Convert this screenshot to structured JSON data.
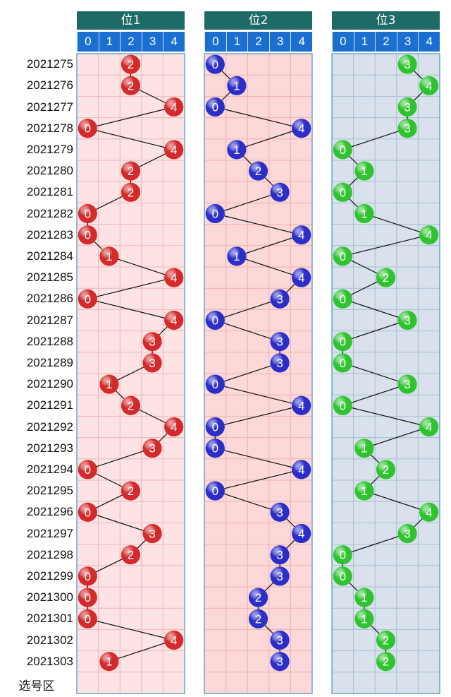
{
  "chart_data": {
    "type": "scatter",
    "periods": [
      "2021275",
      "2021276",
      "2021277",
      "2021278",
      "2021279",
      "2021280",
      "2021281",
      "2021282",
      "2021283",
      "2021284",
      "2021285",
      "2021286",
      "2021287",
      "2021288",
      "2021289",
      "2021290",
      "2021291",
      "2021292",
      "2021293",
      "2021294",
      "2021295",
      "2021296",
      "2021297",
      "2021298",
      "2021299",
      "2021300",
      "2021301",
      "2021302",
      "2021303"
    ],
    "columns": [
      "0",
      "1",
      "2",
      "3",
      "4"
    ],
    "select_area_label": "选号区",
    "panels": [
      {
        "title": "位1",
        "color": "#d42a2a",
        "values": [
          2,
          2,
          4,
          0,
          4,
          2,
          2,
          0,
          0,
          1,
          4,
          0,
          4,
          3,
          3,
          1,
          2,
          4,
          3,
          0,
          2,
          0,
          3,
          2,
          0,
          0,
          0,
          4,
          1
        ]
      },
      {
        "title": "位2",
        "color": "#2b2fc8",
        "values": [
          0,
          1,
          0,
          4,
          1,
          2,
          3,
          0,
          4,
          1,
          4,
          3,
          0,
          3,
          3,
          0,
          4,
          0,
          0,
          4,
          0,
          3,
          4,
          3,
          3,
          2,
          2,
          3,
          3
        ]
      },
      {
        "title": "位3",
        "color": "#2fc42f",
        "values": [
          3,
          4,
          3,
          3,
          0,
          1,
          0,
          1,
          4,
          0,
          2,
          0,
          3,
          0,
          0,
          3,
          0,
          4,
          1,
          2,
          1,
          4,
          3,
          0,
          0,
          1,
          1,
          2,
          2
        ]
      }
    ]
  }
}
